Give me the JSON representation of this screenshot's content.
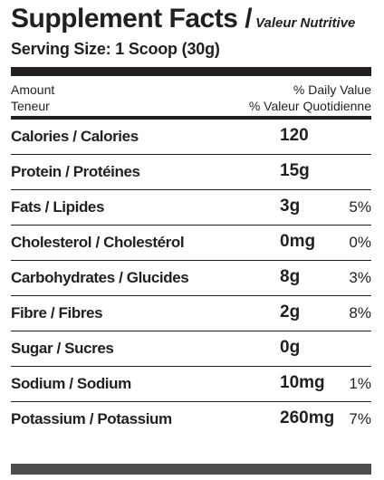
{
  "title": {
    "main": "Supplement Facts /",
    "sub": "Valeur Nutritive"
  },
  "serving_size": "Serving Size: 1 Scoop (30g)",
  "header": {
    "amount_en": "Amount",
    "amount_fr": "Teneur",
    "dv_en": "% Daily Value",
    "dv_fr": "% Valeur Quotidienne"
  },
  "nutrients": [
    {
      "name": "Calories / Calories",
      "amount": "120",
      "dv": ""
    },
    {
      "name": "Protein / Protéines",
      "amount": "15g",
      "dv": ""
    },
    {
      "name": "Fats / Lipides",
      "amount": "3g",
      "dv": "5%"
    },
    {
      "name": "Cholesterol / Cholestérol",
      "amount": "0mg",
      "dv": "0%"
    },
    {
      "name": "Carbohydrates / Glucides",
      "amount": "8g",
      "dv": "3%"
    },
    {
      "name": "Fibre / Fibres",
      "amount": "2g",
      "dv": "8%"
    },
    {
      "name": "Sugar / Sucres",
      "amount": "0g",
      "dv": ""
    },
    {
      "name": "Sodium / Sodium",
      "amount": "10mg",
      "dv": "1%"
    },
    {
      "name": "Potassium / Potassium",
      "amount": "260mg",
      "dv": "7%"
    }
  ]
}
